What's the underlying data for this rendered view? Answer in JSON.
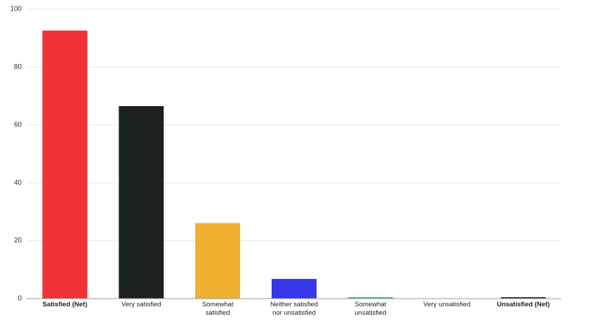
{
  "chart_data": {
    "type": "bar",
    "title": "",
    "xlabel": "",
    "ylabel": "",
    "ylim": [
      0,
      100
    ],
    "yticks": [
      0,
      20,
      40,
      60,
      80,
      100
    ],
    "grid": true,
    "categories": [
      {
        "label": [
          "Satisfied (Net)"
        ],
        "bold": true
      },
      {
        "label": [
          "Very satisfied"
        ],
        "bold": false
      },
      {
        "label": [
          "Somewhat",
          "satisfied"
        ],
        "bold": false
      },
      {
        "label": [
          "Neither satisfied",
          "nor unsatisfied"
        ],
        "bold": false
      },
      {
        "label": [
          "Somewhat",
          "unsatisfied"
        ],
        "bold": false
      },
      {
        "label": [
          "Very unsatisfied"
        ],
        "bold": false
      },
      {
        "label": [
          "Unsatisfied (Net)"
        ],
        "bold": true
      }
    ],
    "values": [
      92.6,
      66.5,
      26.1,
      6.8,
      0.5,
      0,
      0.5
    ],
    "colors": [
      "#f23136",
      "#1b2020",
      "#f0b030",
      "#3538e8",
      "#1fc0b8",
      "#8c8c8c",
      "#2a2f2f"
    ]
  }
}
